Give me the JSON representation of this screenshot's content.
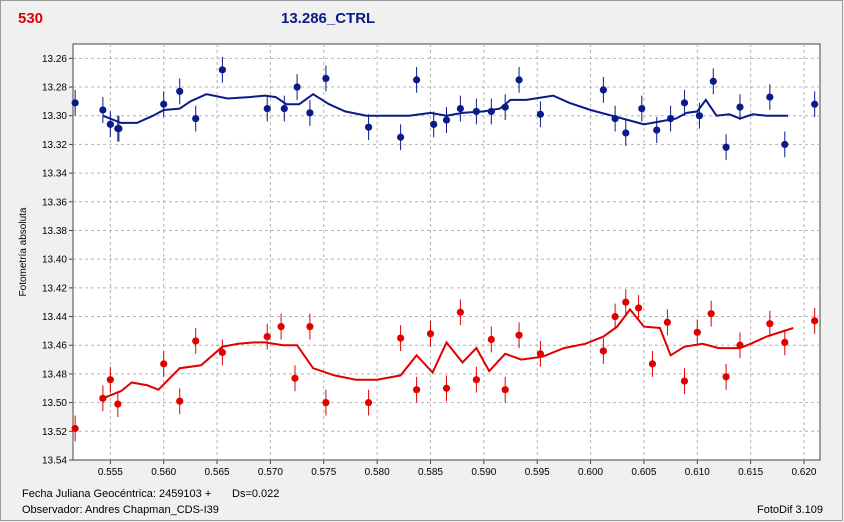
{
  "header": {
    "left_title": "530",
    "center_title": "13.286_CTRL"
  },
  "footer": {
    "jd_label": "Fecha Juliana Geocéntrica: 2459103 +",
    "ds_label": "Ds=0.022",
    "observer": "Observador: Andres Chapman_CDS-I39",
    "software": "FotoDif 3.109"
  },
  "colors": {
    "series_blue": "#0a1a8a",
    "series_red": "#e00000",
    "grid": "#b4b4b4"
  },
  "chart_data": {
    "type": "scatter",
    "ylabel": "Fotometría absoluta",
    "xlabel": "",
    "xlim": [
      0.5515,
      0.6215
    ],
    "ylim": [
      13.25,
      13.54
    ],
    "y_inverted": true,
    "grid": true,
    "x_ticks": [
      "0.555",
      "0.560",
      "0.565",
      "0.570",
      "0.575",
      "0.580",
      "0.585",
      "0.590",
      "0.595",
      "0.600",
      "0.605",
      "0.610",
      "0.615",
      "0.620"
    ],
    "y_ticks": [
      "13.26",
      "13.28",
      "13.30",
      "13.32",
      "13.34",
      "13.36",
      "13.38",
      "13.40",
      "13.42",
      "13.44",
      "13.46",
      "13.48",
      "13.50",
      "13.52",
      "13.54"
    ],
    "series": [
      {
        "color": "#0a1a8a",
        "error": 0.009,
        "points": [
          [
            0.5517,
            13.291
          ],
          [
            0.5543,
            13.296
          ],
          [
            0.555,
            13.306
          ],
          [
            0.5557,
            13.309
          ],
          [
            0.5558,
            13.309
          ],
          [
            0.56,
            13.292
          ],
          [
            0.5615,
            13.283
          ],
          [
            0.563,
            13.302
          ],
          [
            0.5655,
            13.268
          ],
          [
            0.5697,
            13.295
          ],
          [
            0.5713,
            13.295
          ],
          [
            0.5725,
            13.28
          ],
          [
            0.5737,
            13.298
          ],
          [
            0.5752,
            13.274
          ],
          [
            0.5792,
            13.308
          ],
          [
            0.5822,
            13.315
          ],
          [
            0.5837,
            13.275
          ],
          [
            0.5853,
            13.306
          ],
          [
            0.5865,
            13.303
          ],
          [
            0.5878,
            13.295
          ],
          [
            0.5893,
            13.297
          ],
          [
            0.5907,
            13.297
          ],
          [
            0.592,
            13.294
          ],
          [
            0.5933,
            13.275
          ],
          [
            0.5953,
            13.299
          ],
          [
            0.6012,
            13.282
          ],
          [
            0.6023,
            13.302
          ],
          [
            0.6033,
            13.312
          ],
          [
            0.6048,
            13.295
          ],
          [
            0.6062,
            13.31
          ],
          [
            0.6075,
            13.302
          ],
          [
            0.6088,
            13.291
          ],
          [
            0.6102,
            13.3
          ],
          [
            0.6115,
            13.276
          ],
          [
            0.6127,
            13.322
          ],
          [
            0.614,
            13.294
          ],
          [
            0.6168,
            13.287
          ],
          [
            0.6182,
            13.32
          ],
          [
            0.621,
            13.292
          ]
        ],
        "trend": [
          [
            0.5543,
            13.3
          ],
          [
            0.556,
            13.305
          ],
          [
            0.5575,
            13.305
          ],
          [
            0.559,
            13.3
          ],
          [
            0.56,
            13.296
          ],
          [
            0.5615,
            13.295
          ],
          [
            0.5625,
            13.29
          ],
          [
            0.564,
            13.285
          ],
          [
            0.566,
            13.288
          ],
          [
            0.568,
            13.287
          ],
          [
            0.5695,
            13.286
          ],
          [
            0.5705,
            13.287
          ],
          [
            0.5715,
            13.292
          ],
          [
            0.5727,
            13.292
          ],
          [
            0.574,
            13.285
          ],
          [
            0.5755,
            13.292
          ],
          [
            0.577,
            13.297
          ],
          [
            0.579,
            13.3
          ],
          [
            0.581,
            13.3
          ],
          [
            0.583,
            13.3
          ],
          [
            0.585,
            13.298
          ],
          [
            0.5865,
            13.3
          ],
          [
            0.588,
            13.298
          ],
          [
            0.59,
            13.297
          ],
          [
            0.5915,
            13.295
          ],
          [
            0.5925,
            13.289
          ],
          [
            0.594,
            13.289
          ],
          [
            0.5965,
            13.286
          ],
          [
            0.598,
            13.291
          ],
          [
            0.6,
            13.296
          ],
          [
            0.602,
            13.3
          ],
          [
            0.6035,
            13.303
          ],
          [
            0.605,
            13.306
          ],
          [
            0.6065,
            13.304
          ],
          [
            0.608,
            13.302
          ],
          [
            0.609,
            13.298
          ],
          [
            0.61,
            13.297
          ],
          [
            0.6108,
            13.289
          ],
          [
            0.6118,
            13.3
          ],
          [
            0.613,
            13.299
          ],
          [
            0.614,
            13.302
          ],
          [
            0.6152,
            13.299
          ],
          [
            0.6165,
            13.3
          ],
          [
            0.6185,
            13.3
          ]
        ]
      },
      {
        "color": "#e00000",
        "error": 0.009,
        "points": [
          [
            0.5517,
            13.518
          ],
          [
            0.5543,
            13.497
          ],
          [
            0.555,
            13.484
          ],
          [
            0.5557,
            13.501
          ],
          [
            0.56,
            13.473
          ],
          [
            0.5615,
            13.499
          ],
          [
            0.563,
            13.457
          ],
          [
            0.5655,
            13.465
          ],
          [
            0.5697,
            13.454
          ],
          [
            0.571,
            13.447
          ],
          [
            0.5723,
            13.483
          ],
          [
            0.5737,
            13.447
          ],
          [
            0.5752,
            13.5
          ],
          [
            0.5792,
            13.5
          ],
          [
            0.5822,
            13.455
          ],
          [
            0.5837,
            13.491
          ],
          [
            0.585,
            13.452
          ],
          [
            0.5865,
            13.49
          ],
          [
            0.5878,
            13.437
          ],
          [
            0.5893,
            13.484
          ],
          [
            0.5907,
            13.456
          ],
          [
            0.592,
            13.491
          ],
          [
            0.5933,
            13.453
          ],
          [
            0.5953,
            13.466
          ],
          [
            0.6012,
            13.464
          ],
          [
            0.6023,
            13.44
          ],
          [
            0.6033,
            13.43
          ],
          [
            0.6045,
            13.434
          ],
          [
            0.6058,
            13.473
          ],
          [
            0.6072,
            13.444
          ],
          [
            0.6088,
            13.485
          ],
          [
            0.61,
            13.451
          ],
          [
            0.6113,
            13.438
          ],
          [
            0.6127,
            13.482
          ],
          [
            0.614,
            13.46
          ],
          [
            0.6168,
            13.445
          ],
          [
            0.6182,
            13.458
          ],
          [
            0.621,
            13.443
          ]
        ],
        "trend": [
          [
            0.5543,
            13.497
          ],
          [
            0.556,
            13.492
          ],
          [
            0.557,
            13.486
          ],
          [
            0.5585,
            13.488
          ],
          [
            0.5595,
            13.491
          ],
          [
            0.5615,
            13.476
          ],
          [
            0.5635,
            13.474
          ],
          [
            0.5655,
            13.461
          ],
          [
            0.567,
            13.459
          ],
          [
            0.5685,
            13.458
          ],
          [
            0.5695,
            13.458
          ],
          [
            0.5712,
            13.46
          ],
          [
            0.5725,
            13.46
          ],
          [
            0.574,
            13.476
          ],
          [
            0.576,
            13.481
          ],
          [
            0.578,
            13.484
          ],
          [
            0.58,
            13.484
          ],
          [
            0.5822,
            13.481
          ],
          [
            0.5837,
            13.467
          ],
          [
            0.5852,
            13.479
          ],
          [
            0.5865,
            13.458
          ],
          [
            0.588,
            13.472
          ],
          [
            0.5893,
            13.462
          ],
          [
            0.5905,
            13.478
          ],
          [
            0.592,
            13.466
          ],
          [
            0.5935,
            13.47
          ],
          [
            0.5955,
            13.468
          ],
          [
            0.5975,
            13.462
          ],
          [
            0.5995,
            13.459
          ],
          [
            0.6012,
            13.454
          ],
          [
            0.6025,
            13.447
          ],
          [
            0.6037,
            13.435
          ],
          [
            0.605,
            13.447
          ],
          [
            0.6065,
            13.448
          ],
          [
            0.6075,
            13.467
          ],
          [
            0.6088,
            13.461
          ],
          [
            0.6105,
            13.459
          ],
          [
            0.612,
            13.462
          ],
          [
            0.614,
            13.462
          ],
          [
            0.615,
            13.459
          ],
          [
            0.6165,
            13.454
          ],
          [
            0.619,
            13.448
          ]
        ]
      }
    ]
  }
}
